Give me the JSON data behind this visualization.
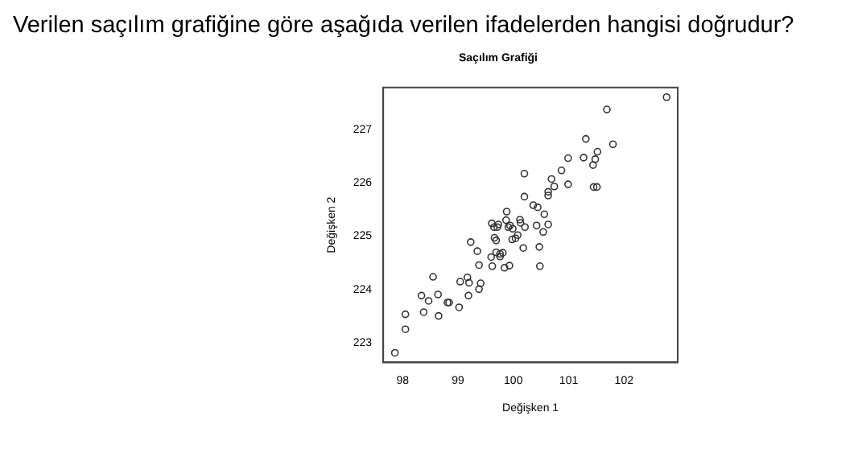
{
  "chart_data": {
    "type": "scatter",
    "title": "Saçılım Grafiği",
    "xlabel": "Değişken 1",
    "ylabel": "Değişken 2",
    "annotations": [
      "Verilen saçılım grafiğine göre aşağıda verilen ifadelerden hangisi doğrudur?"
    ],
    "x": [
      97.86,
      98.05,
      98.05,
      98.38,
      98.34,
      98.47,
      98.65,
      98.64,
      98.55,
      98.81,
      98.84,
      99.02,
      99.04,
      99.19,
      99.2,
      99.17,
      99.23,
      99.38,
      99.41,
      99.38,
      99.35,
      99.6,
      99.62,
      99.61,
      99.65,
      99.71,
      99.73,
      99.66,
      99.69,
      99.69,
      99.76,
      99.76,
      99.81,
      99.84,
      99.93,
      99.88,
      99.87,
      99.91,
      99.94,
      99.99,
      99.98,
      100.04,
      100.08,
      100.12,
      100.13,
      100.21,
      100.18,
      100.2,
      100.2,
      100.36,
      100.44,
      100.42,
      100.47,
      100.48,
      100.54,
      100.56,
      100.63,
      100.63,
      100.63,
      100.69,
      100.74,
      100.87,
      100.99,
      100.99,
      101.27,
      101.31,
      101.44,
      101.48,
      101.52,
      101.45,
      101.51,
      101.69,
      101.8,
      102.77
    ],
    "values": [
      222.82,
      223.26,
      223.54,
      223.58,
      223.89,
      223.79,
      223.51,
      223.91,
      224.24,
      223.76,
      223.76,
      223.67,
      224.15,
      223.89,
      224.13,
      224.23,
      224.89,
      224.01,
      224.12,
      224.46,
      224.72,
      224.61,
      224.44,
      225.24,
      225.17,
      225.17,
      225.22,
      224.97,
      224.92,
      224.7,
      224.67,
      224.62,
      224.69,
      224.41,
      224.45,
      225.46,
      225.3,
      225.17,
      225.2,
      225.14,
      224.94,
      224.96,
      225.02,
      225.31,
      225.25,
      225.17,
      224.78,
      225.74,
      226.17,
      225.58,
      225.54,
      225.2,
      224.8,
      224.44,
      225.08,
      225.41,
      225.22,
      225.76,
      225.83,
      226.07,
      225.93,
      226.23,
      226.46,
      225.97,
      226.47,
      226.82,
      226.33,
      226.44,
      226.58,
      225.92,
      225.92,
      227.37,
      226.72,
      227.6
    ],
    "color": "#333333",
    "marker": "circle",
    "grid": false,
    "xlim": [
      97.65,
      102.97
    ],
    "xticks": [
      98,
      99,
      100,
      101,
      102
    ],
    "ylim": [
      222.64,
      227.78
    ],
    "yticks": [
      223,
      224,
      225,
      226,
      227
    ]
  }
}
